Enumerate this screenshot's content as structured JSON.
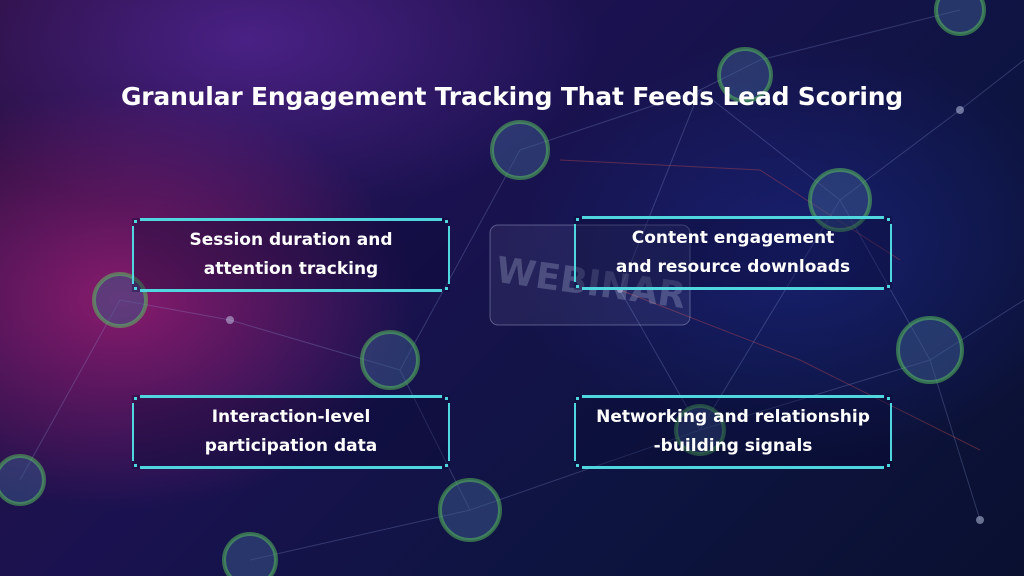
{
  "title": "Granular Engagement Tracking That Feeds Lead Scoring",
  "background": {
    "decor_text": "WEBINAR"
  },
  "cards": [
    {
      "line1": "Session duration and",
      "line2": "attention tracking"
    },
    {
      "line1": "Content engagement",
      "line2": "and resource downloads"
    },
    {
      "line1": "Interaction-level",
      "line2": "participation data"
    },
    {
      "line1": "Networking and relationship",
      "line2": "-building signals"
    }
  ],
  "colors": {
    "accent": "#4fd6de",
    "text": "#ffffff",
    "background": "#121446"
  }
}
